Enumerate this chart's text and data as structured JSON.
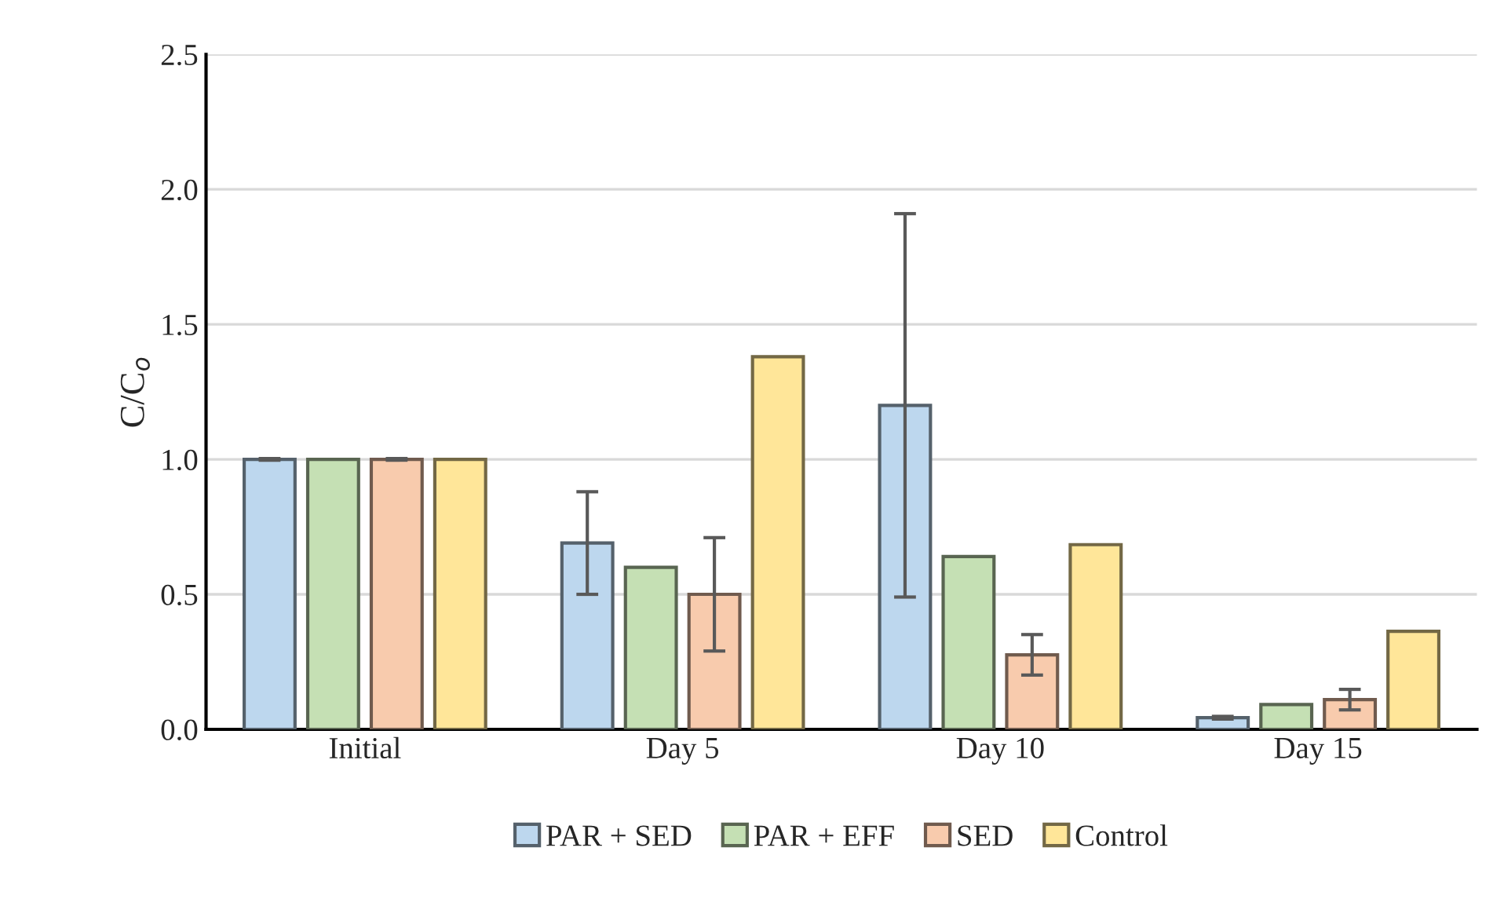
{
  "chart_data": {
    "type": "bar",
    "ylabel": "C/C$_{o}$",
    "categories": [
      "Initial",
      "Day 5",
      "Day 10",
      "Day 15"
    ],
    "series": [
      {
        "name": "PAR + SED",
        "color": "#bdd7ee",
        "values": [
          1.0,
          0.69,
          1.2,
          0.043
        ],
        "errors": [
          0.003,
          0.19,
          0.71,
          0.005
        ]
      },
      {
        "name": "PAR + EFF",
        "color": "#c5e0b4",
        "values": [
          1.0,
          0.6,
          0.64,
          0.092
        ]
      },
      {
        "name": "SED",
        "color": "#f8cbad",
        "values": [
          1.0,
          0.5,
          0.276,
          0.11
        ],
        "errors": [
          0.003,
          0.21,
          0.075,
          0.038
        ]
      },
      {
        "name": "Control",
        "color": "#ffe699",
        "values": [
          1.0,
          1.38,
          0.684,
          0.363
        ]
      }
    ],
    "ylim": [
      0,
      2.5
    ],
    "yticks": [
      {
        "value": 0,
        "label": "0.0"
      },
      {
        "value": 0.5,
        "label": "0.5"
      },
      {
        "value": 1,
        "label": "1.0"
      },
      {
        "value": 1.5,
        "label": "1.5"
      },
      {
        "value": 2,
        "label": "2.0"
      },
      {
        "value": 2.5,
        "label": "2.5"
      }
    ],
    "grid": "y",
    "legend": "bottom"
  }
}
